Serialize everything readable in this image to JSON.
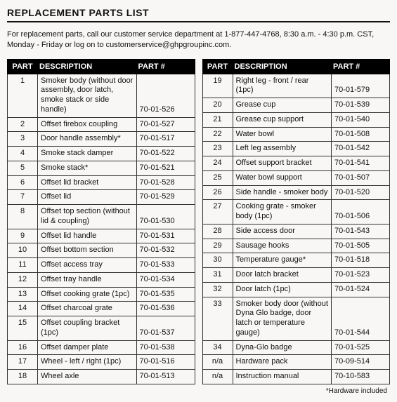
{
  "title": "REPLACEMENT PARTS LIST",
  "intro": "For replacement parts, call our customer service department at 1-877-447-4768, 8:30 a.m. - 4:30 p.m. CST, Monday - Friday or log on to customerservice@ghpgroupinc.com.",
  "headers": {
    "part": "PART",
    "description": "DESCRIPTION",
    "partnum": "PART #"
  },
  "footnote": "*Hardware included",
  "left_rows": [
    {
      "part": "1",
      "desc": "Smoker body (without door assembly, door latch, smoke stack or side handle)",
      "num": "70-01-526"
    },
    {
      "part": "2",
      "desc": "Offset firebox coupling",
      "num": "70-01-527"
    },
    {
      "part": "3",
      "desc": "Door handle assembly*",
      "num": "70-01-517"
    },
    {
      "part": "4",
      "desc": "Smoke stack damper",
      "num": "70-01-522"
    },
    {
      "part": "5",
      "desc": "Smoke stack*",
      "num": "70-01-521"
    },
    {
      "part": "6",
      "desc": "Offset lid bracket",
      "num": "70-01-528"
    },
    {
      "part": "7",
      "desc": "Offset lid",
      "num": "70-01-529"
    },
    {
      "part": "8",
      "desc": "Offset top section (without lid & coupling)",
      "num": "70-01-530"
    },
    {
      "part": "9",
      "desc": "Offset lid handle",
      "num": "70-01-531"
    },
    {
      "part": "10",
      "desc": "Offset bottom section",
      "num": "70-01-532"
    },
    {
      "part": "11",
      "desc": "Offset access tray",
      "num": "70-01-533"
    },
    {
      "part": "12",
      "desc": "Offset tray handle",
      "num": "70-01-534"
    },
    {
      "part": "13",
      "desc": "Offset cooking grate (1pc)",
      "num": "70-01-535"
    },
    {
      "part": "14",
      "desc": "Offset charcoal grate",
      "num": "70-01-536"
    },
    {
      "part": "15",
      "desc": "Offset coupling bracket (1pc)",
      "num": "70-01-537"
    },
    {
      "part": "16",
      "desc": "Offset damper plate",
      "num": "70-01-538"
    },
    {
      "part": "17",
      "desc": "Wheel - left / right (1pc)",
      "num": "70-01-516"
    },
    {
      "part": "18",
      "desc": "Wheel axle",
      "num": "70-01-513"
    }
  ],
  "right_rows": [
    {
      "part": "19",
      "desc": "Right leg - front / rear (1pc)",
      "num": "70-01-579"
    },
    {
      "part": "20",
      "desc": "Grease cup",
      "num": "70-01-539"
    },
    {
      "part": "21",
      "desc": "Grease cup support",
      "num": "70-01-540"
    },
    {
      "part": "22",
      "desc": "Water bowl",
      "num": "70-01-508"
    },
    {
      "part": "23",
      "desc": "Left leg assembly",
      "num": "70-01-542"
    },
    {
      "part": "24",
      "desc": "Offset support bracket",
      "num": "70-01-541"
    },
    {
      "part": "25",
      "desc": "Water bowl support",
      "num": "70-01-507"
    },
    {
      "part": "26",
      "desc": "Side handle - smoker body",
      "num": "70-01-520"
    },
    {
      "part": "27",
      "desc": "Cooking grate - smoker body (1pc)",
      "num": "70-01-506"
    },
    {
      "part": "28",
      "desc": "Side access door",
      "num": "70-01-543"
    },
    {
      "part": "29",
      "desc": "Sausage hooks",
      "num": "70-01-505"
    },
    {
      "part": "30",
      "desc": "Temperature gauge*",
      "num": "70-01-518"
    },
    {
      "part": "31",
      "desc": "Door latch bracket",
      "num": "70-01-523"
    },
    {
      "part": "32",
      "desc": "Door latch (1pc)",
      "num": "70-01-524"
    },
    {
      "part": "33",
      "desc": "Smoker body door (without Dyna Glo badge, door latch or temperature gauge)",
      "num": "70-01-544"
    },
    {
      "part": "34",
      "desc": "Dyna-Glo badge",
      "num": "70-01-525"
    },
    {
      "part": "n/a",
      "desc": "Hardware pack",
      "num": "70-09-514"
    },
    {
      "part": "n/a",
      "desc": "Instruction manual",
      "num": "70-10-583"
    }
  ]
}
